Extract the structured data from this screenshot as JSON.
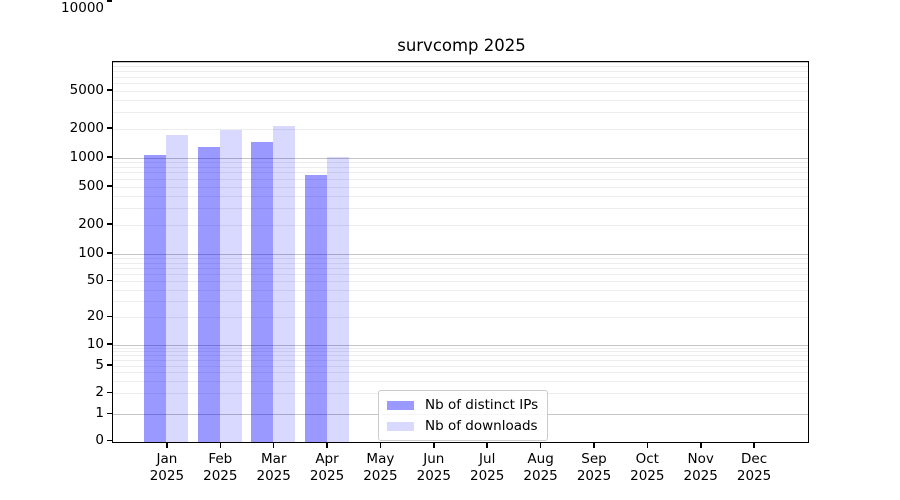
{
  "title": "survcomp 2025",
  "chart_data": {
    "type": "bar",
    "title": "survcomp 2025",
    "categories": [
      "Jan",
      "Feb",
      "Mar",
      "Apr",
      "May",
      "Jun",
      "Jul",
      "Aug",
      "Sep",
      "Oct",
      "Nov",
      "Dec"
    ],
    "category_year": "2025",
    "series": [
      {
        "name": "Nb of distinct IPs",
        "color": "rgba(0,0,255,0.4)",
        "color_hex": "#9999ff",
        "values": [
          1100,
          1330,
          1500,
          680,
          null,
          null,
          null,
          null,
          null,
          null,
          null,
          null
        ]
      },
      {
        "name": "Nb of downloads",
        "color": "rgba(0,0,255,0.15)",
        "color_hex": "#d9d9ff",
        "values": [
          1750,
          2000,
          2200,
          1030,
          null,
          null,
          null,
          null,
          null,
          null,
          null,
          null
        ]
      }
    ],
    "xlabel": "",
    "ylabel": "",
    "yaxis": {
      "scale": "symlog",
      "ylim": [
        0,
        10000
      ],
      "tick_labels": [
        "0",
        "1",
        "2",
        "5",
        "10",
        "20",
        "50",
        "100",
        "200",
        "500",
        "1000",
        "2000",
        "5000",
        "10000"
      ],
      "tick_values": [
        0,
        1,
        2,
        5,
        10,
        20,
        50,
        100,
        200,
        500,
        1000,
        2000,
        5000,
        10000
      ],
      "grid": "on"
    },
    "legend": {
      "position": "lower center",
      "entries": [
        "Nb of distinct IPs",
        "Nb of downloads"
      ]
    }
  }
}
